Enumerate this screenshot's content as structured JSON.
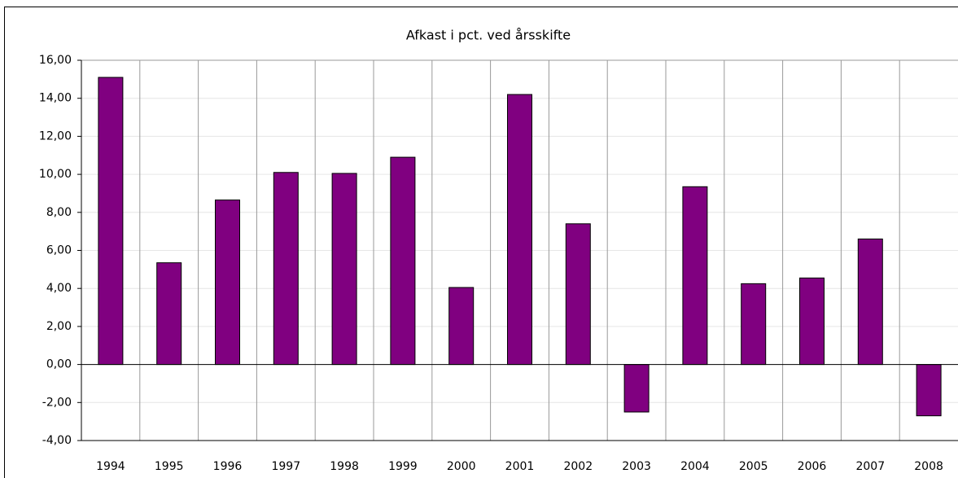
{
  "chart_data": {
    "type": "bar",
    "title": "Afkast i pct. ved årsskifte",
    "categories": [
      "1994",
      "1995",
      "1996",
      "1997",
      "1998",
      "1999",
      "2000",
      "2001",
      "2002",
      "2003",
      "2004",
      "2005",
      "2006",
      "2007",
      "2008"
    ],
    "values": [
      15.1,
      5.35,
      8.65,
      10.1,
      10.05,
      10.9,
      4.05,
      14.2,
      7.4,
      -2.5,
      9.35,
      4.25,
      4.55,
      6.6,
      -2.7
    ],
    "color": "#800080",
    "ylim": [
      -4,
      16
    ],
    "yticks": [
      {
        "value": -4,
        "label": "-4,00"
      },
      {
        "value": -2,
        "label": "-2,00"
      },
      {
        "value": 0,
        "label": "0,00"
      },
      {
        "value": 2,
        "label": "2,00"
      },
      {
        "value": 4,
        "label": "4,00"
      },
      {
        "value": 6,
        "label": "6,00"
      },
      {
        "value": 8,
        "label": "8,00"
      },
      {
        "value": 10,
        "label": "10,00"
      },
      {
        "value": 12,
        "label": "12,00"
      },
      {
        "value": 14,
        "label": "14,00"
      },
      {
        "value": 16,
        "label": "16,00"
      }
    ],
    "grid": true
  }
}
